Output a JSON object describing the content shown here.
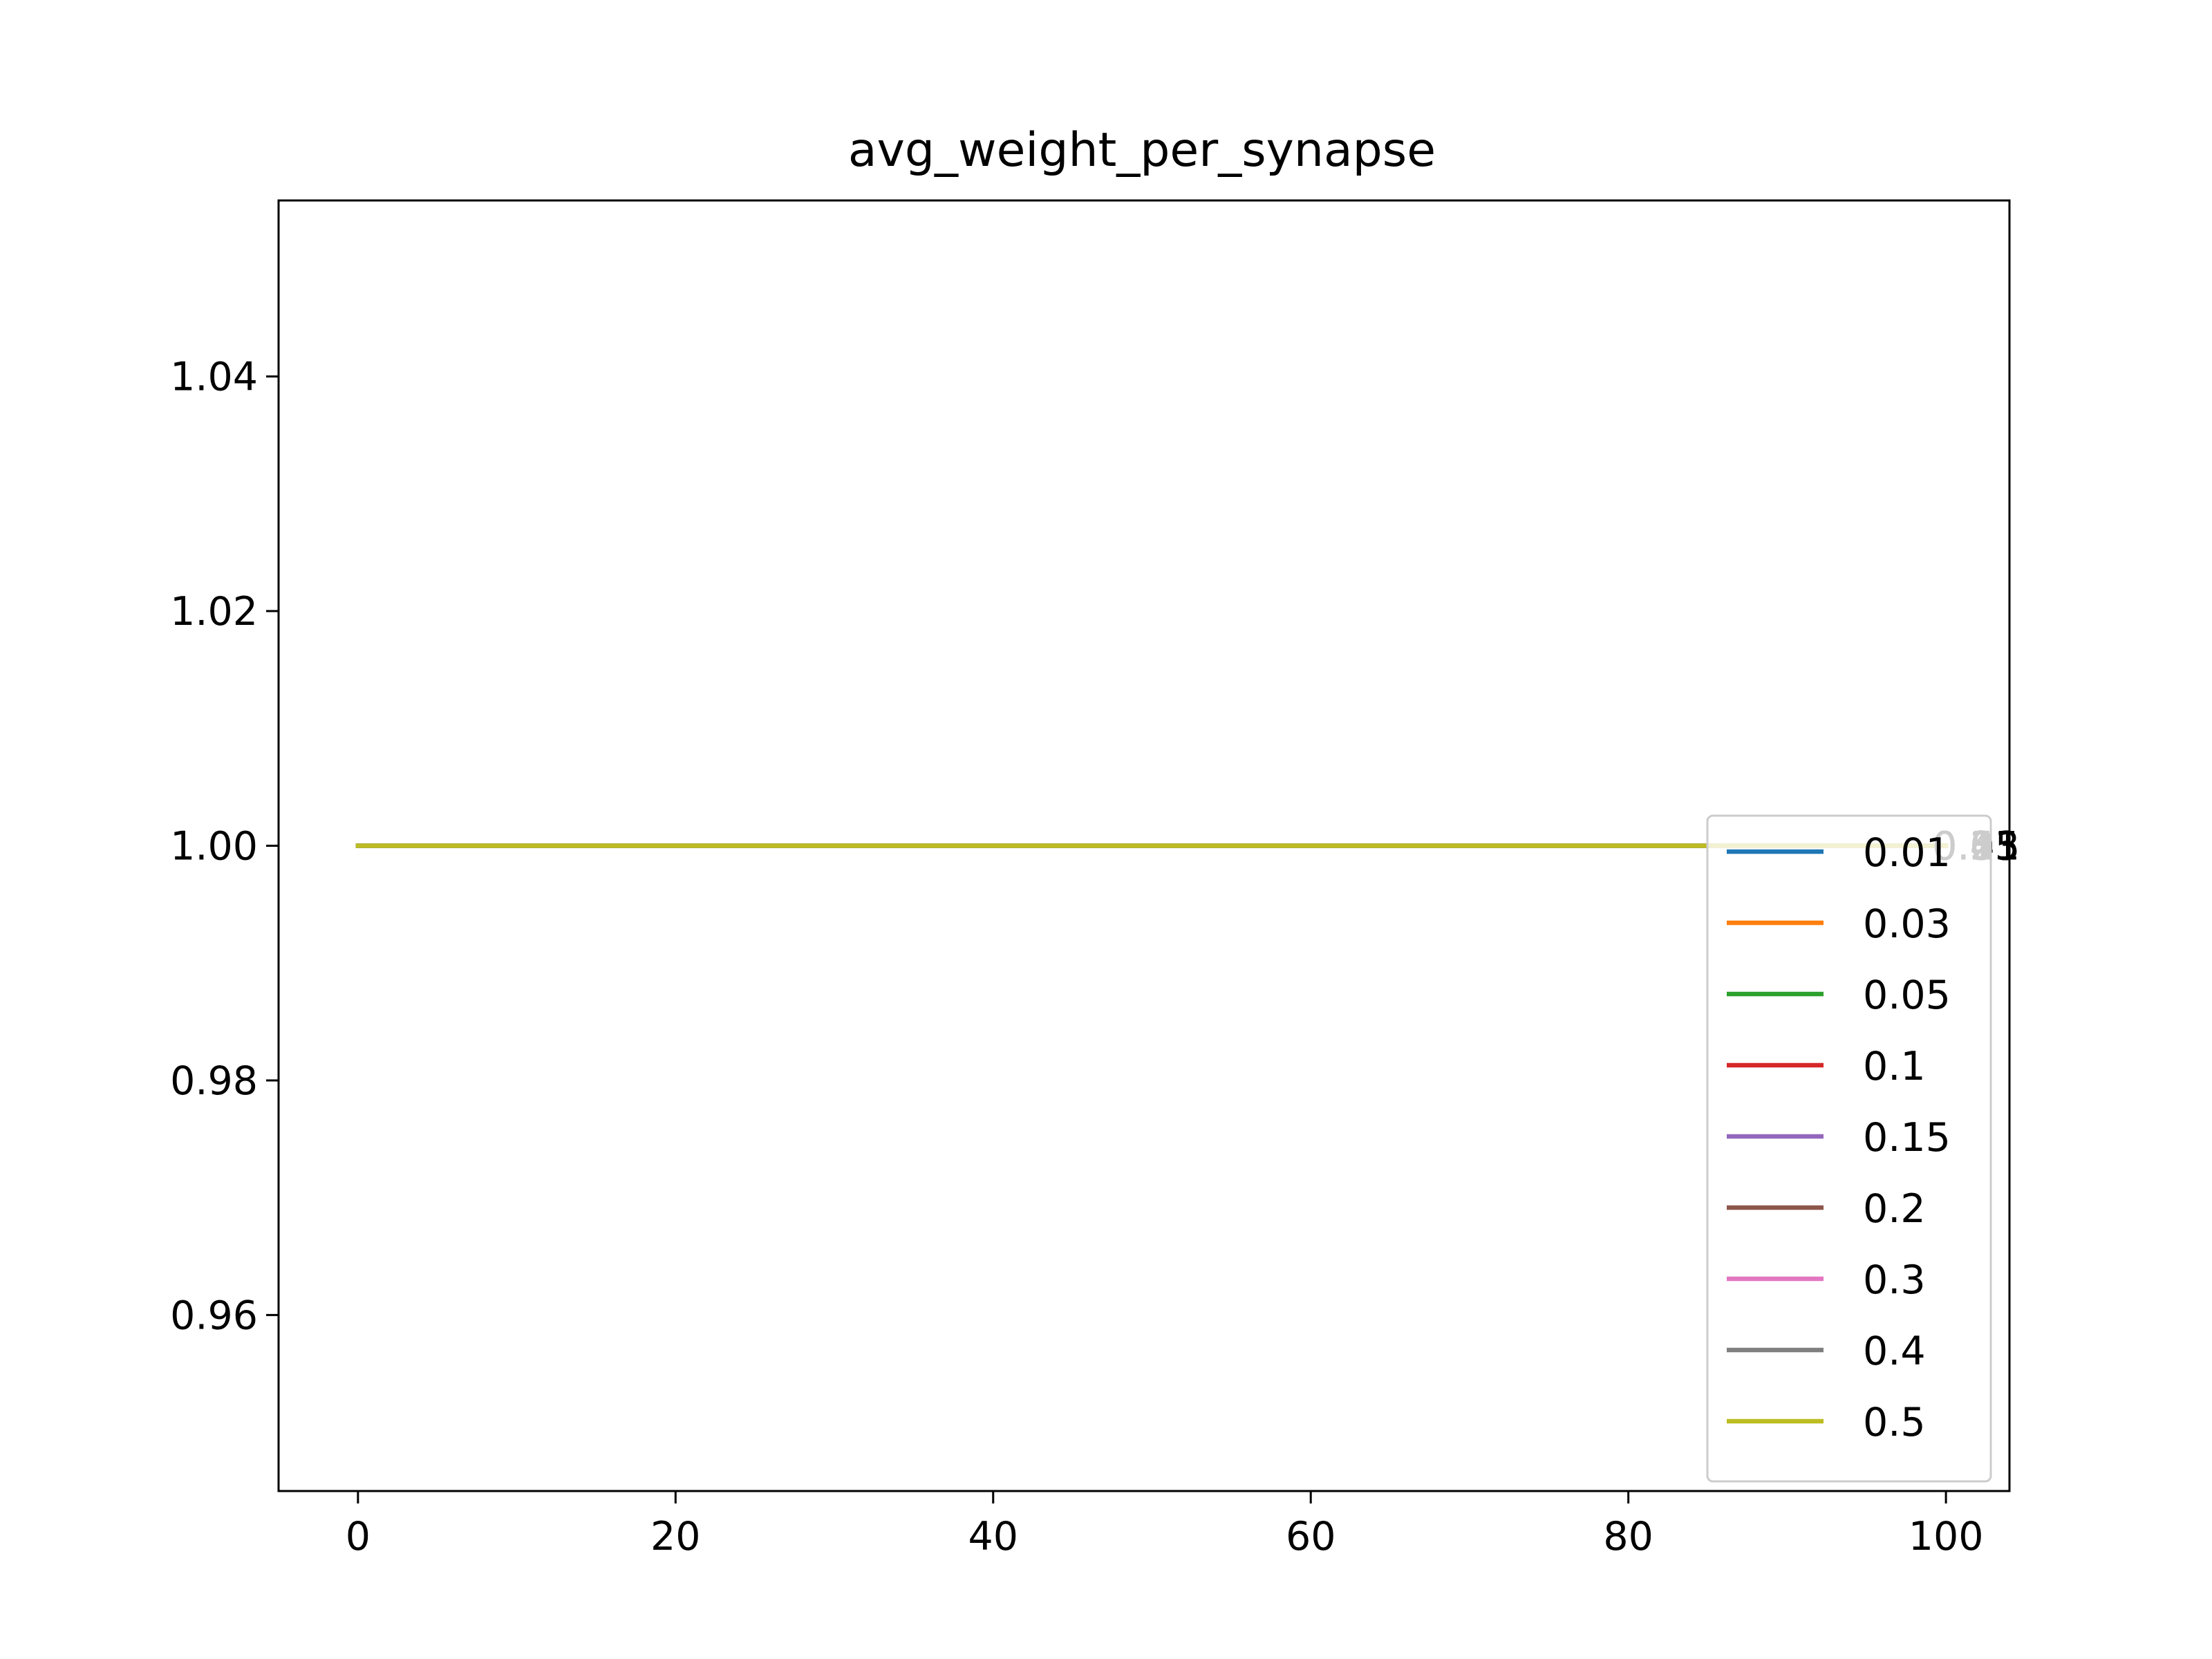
{
  "chart_data": {
    "type": "line",
    "title": "avg_weight_per_synapse",
    "xlabel": "",
    "ylabel": "",
    "xlim": [
      -5,
      104
    ],
    "ylim": [
      0.945,
      1.055
    ],
    "xticks": [
      "0",
      "20",
      "40",
      "60",
      "80",
      "100"
    ],
    "xtick_values": [
      0,
      20,
      40,
      60,
      80,
      100
    ],
    "yticks": [
      "0.96",
      "0.98",
      "1.00",
      "1.02",
      "1.04"
    ],
    "ytick_values": [
      0.96,
      0.98,
      1.0,
      1.02,
      1.04
    ],
    "grid": false,
    "legend_position": "lower right",
    "series": [
      {
        "name": "0.01",
        "color": "#1f77b4",
        "x": [
          0,
          100
        ],
        "y": [
          1.0,
          1.0
        ],
        "end_label": "0.01"
      },
      {
        "name": "0.03",
        "color": "#ff7f0e",
        "x": [
          0,
          100
        ],
        "y": [
          1.0,
          1.0
        ],
        "end_label": "0.03"
      },
      {
        "name": "0.05",
        "color": "#2ca02c",
        "x": [
          0,
          100
        ],
        "y": [
          1.0,
          1.0
        ],
        "end_label": "0.05"
      },
      {
        "name": "0.1",
        "color": "#d62728",
        "x": [
          0,
          100
        ],
        "y": [
          1.0,
          1.0
        ],
        "end_label": "0.1"
      },
      {
        "name": "0.15",
        "color": "#9467bd",
        "x": [
          0,
          100
        ],
        "y": [
          1.0,
          1.0
        ],
        "end_label": "0.15"
      },
      {
        "name": "0.2",
        "color": "#8c564b",
        "x": [
          0,
          100
        ],
        "y": [
          1.0,
          1.0
        ],
        "end_label": "0.2"
      },
      {
        "name": "0.3",
        "color": "#e377c2",
        "x": [
          0,
          100
        ],
        "y": [
          1.0,
          1.0
        ],
        "end_label": "0.3"
      },
      {
        "name": "0.4",
        "color": "#7f7f7f",
        "x": [
          0,
          100
        ],
        "y": [
          1.0,
          1.0
        ],
        "end_label": "0.4"
      },
      {
        "name": "0.5",
        "color": "#bcbd22",
        "x": [
          0,
          100
        ],
        "y": [
          1.0,
          1.0
        ],
        "end_label": "0.5"
      }
    ]
  }
}
